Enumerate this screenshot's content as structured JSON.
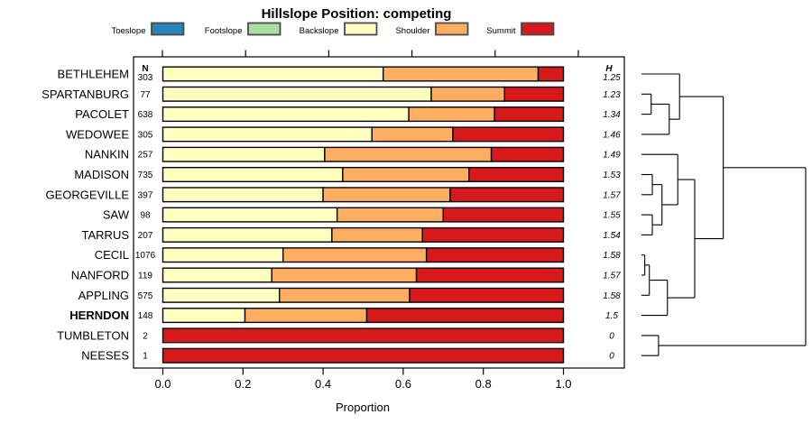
{
  "title": "Hillslope Position: competing",
  "legend": {
    "items": [
      {
        "label": "Toeslope",
        "color": "#2B83BA"
      },
      {
        "label": "Footslope",
        "color": "#ABDDA4"
      },
      {
        "label": "Backslope",
        "color": "#FFFFBF"
      },
      {
        "label": "Shoulder",
        "color": "#FDAE61"
      },
      {
        "label": "Summit",
        "color": "#D7191C"
      }
    ]
  },
  "columns": {
    "n_header": "N",
    "h_header": "H"
  },
  "axis": {
    "label": "Proportion",
    "ticks": [
      "0.0",
      "0.2",
      "0.4",
      "0.6",
      "0.8",
      "1.0"
    ]
  },
  "chart_data": {
    "type": "bar",
    "orientation": "horizontal-stacked",
    "categories": [
      "Toeslope",
      "Footslope",
      "Backslope",
      "Shoulder",
      "Summit"
    ],
    "colors": [
      "#2B83BA",
      "#ABDDA4",
      "#FFFFBF",
      "#FDAE61",
      "#D7191C"
    ],
    "xlabel": "Proportion",
    "xlim": [
      0,
      1
    ],
    "rows": [
      {
        "name": "BETHLEHEM",
        "n": 303,
        "h": "1.25",
        "bold": false,
        "proportions": [
          0,
          0,
          0.55,
          0.387,
          0.063
        ]
      },
      {
        "name": "SPARTANBURG",
        "n": 77,
        "h": "1.23",
        "bold": false,
        "proportions": [
          0,
          0,
          0.67,
          0.183,
          0.147
        ]
      },
      {
        "name": "PACOLET",
        "n": 638,
        "h": "1.34",
        "bold": false,
        "proportions": [
          0,
          0,
          0.614,
          0.214,
          0.172
        ]
      },
      {
        "name": "WEDOWEE",
        "n": 305,
        "h": "1.46",
        "bold": false,
        "proportions": [
          0,
          0,
          0.522,
          0.202,
          0.276
        ]
      },
      {
        "name": "NANKIN",
        "n": 257,
        "h": "1.49",
        "bold": false,
        "proportions": [
          0,
          0,
          0.404,
          0.416,
          0.18
        ]
      },
      {
        "name": "MADISON",
        "n": 735,
        "h": "1.53",
        "bold": false,
        "proportions": [
          0,
          0,
          0.449,
          0.315,
          0.236
        ]
      },
      {
        "name": "GEORGEVILLE",
        "n": 397,
        "h": "1.57",
        "bold": false,
        "proportions": [
          0,
          0,
          0.4,
          0.317,
          0.283
        ]
      },
      {
        "name": "SAW",
        "n": 98,
        "h": "1.55",
        "bold": false,
        "proportions": [
          0,
          0,
          0.435,
          0.265,
          0.3
        ]
      },
      {
        "name": "TARRUS",
        "n": 207,
        "h": "1.54",
        "bold": false,
        "proportions": [
          0,
          0,
          0.422,
          0.226,
          0.352
        ]
      },
      {
        "name": "CECIL",
        "n": 1076,
        "h": "1.58",
        "bold": false,
        "proportions": [
          0,
          0,
          0.3,
          0.358,
          0.342
        ]
      },
      {
        "name": "NANFORD",
        "n": 119,
        "h": "1.57",
        "bold": false,
        "proportions": [
          0,
          0,
          0.272,
          0.361,
          0.367
        ]
      },
      {
        "name": "APPLING",
        "n": 575,
        "h": "1.58",
        "bold": false,
        "proportions": [
          0,
          0,
          0.291,
          0.325,
          0.384
        ]
      },
      {
        "name": "HERNDON",
        "n": 148,
        "h": "1.5",
        "bold": true,
        "proportions": [
          0,
          0,
          0.205,
          0.304,
          0.491
        ]
      },
      {
        "name": "TUMBLETON",
        "n": 2,
        "h": "0",
        "bold": false,
        "proportions": [
          0,
          0,
          0,
          0,
          1
        ]
      },
      {
        "name": "NEESES",
        "n": 1,
        "h": "0",
        "bold": false,
        "proportions": [
          0,
          0,
          0,
          0,
          1
        ]
      }
    ],
    "dendrogram": {
      "h": 1.0,
      "children": [
        {
          "h": 0.498,
          "children": [
            {
              "h": 0.232,
              "children": [
                {
                  "leaf": "BETHLEHEM"
                },
                {
                  "h": 0.169,
                  "children": [
                    {
                      "h": 0.059,
                      "children": [
                        {
                          "leaf": "SPARTANBURG"
                        },
                        {
                          "leaf": "PACOLET"
                        }
                      ]
                    },
                    {
                      "leaf": "WEDOWEE"
                    }
                  ]
                }
              ]
            },
            {
              "h": 0.324,
              "children": [
                {
                  "h": 0.221,
                  "children": [
                    {
                      "leaf": "NANKIN"
                    },
                    {
                      "h": 0.125,
                      "children": [
                        {
                          "h": 0.066,
                          "children": [
                            {
                              "leaf": "MADISON"
                            },
                            {
                              "leaf": "GEORGEVILLE"
                            }
                          ]
                        },
                        {
                          "h": 0.066,
                          "children": [
                            {
                              "leaf": "SAW"
                            },
                            {
                              "leaf": "TARRUS"
                            }
                          ]
                        }
                      ]
                    }
                  ]
                },
                {
                  "h": 0.158,
                  "children": [
                    {
                      "h": 0.048,
                      "children": [
                        {
                          "h": 0.02,
                          "children": [
                            {
                              "leaf": "CECIL"
                            },
                            {
                              "leaf": "NANFORD"
                            }
                          ]
                        },
                        {
                          "leaf": "APPLING"
                        }
                      ]
                    },
                    {
                      "leaf": "HERNDON"
                    }
                  ]
                }
              ]
            }
          ]
        },
        {
          "h": 0.104,
          "children": [
            {
              "leaf": "TUMBLETON"
            },
            {
              "leaf": "NEESES"
            }
          ]
        }
      ]
    }
  }
}
